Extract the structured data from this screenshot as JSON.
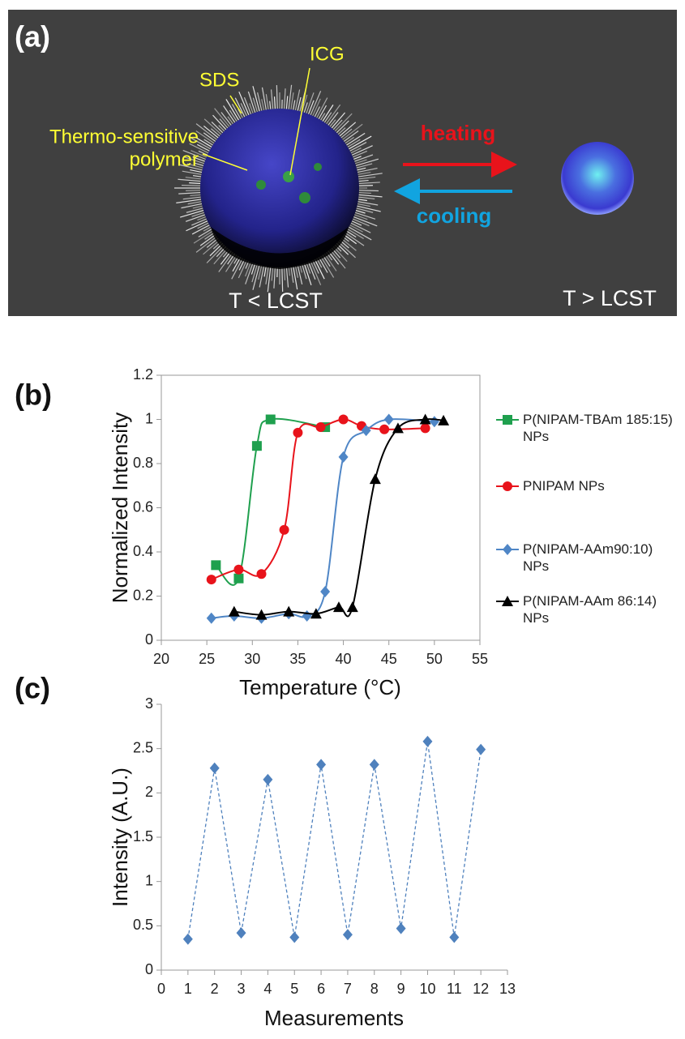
{
  "panel_a": {
    "label": "(a)",
    "sds": "SDS",
    "icg": "ICG",
    "polymer": [
      "Thermo-sensitive",
      "polymer"
    ],
    "heating": "heating",
    "cooling": "cooling",
    "below": "T < LCST",
    "above": "T > LCST"
  },
  "chart_data": [
    {
      "type": "line",
      "panel_label": "(b)",
      "smooth": true,
      "frame": true,
      "dashed": false,
      "y_label": "Normalized Intensity",
      "x_label": "Temperature (°C)",
      "xlim": [
        20,
        55
      ],
      "xticks": [
        20,
        25,
        30,
        35,
        40,
        45,
        50,
        55
      ],
      "ylim": [
        0,
        1.2
      ],
      "yticks": [
        0,
        0.2,
        0.4,
        0.6,
        0.8,
        1,
        1.2
      ],
      "legend": "right",
      "series": [
        {
          "name": "P(NIPAM-TBAm 185:15) NPs",
          "color": "#1fa04e",
          "marker": "square",
          "x": [
            26,
            28.5,
            30.5,
            32,
            38
          ],
          "values": [
            0.34,
            0.28,
            0.88,
            1.0,
            0.965
          ]
        },
        {
          "name": "PNIPAM NPs",
          "color": "#e8131b",
          "marker": "circle",
          "x": [
            25.5,
            28.5,
            31,
            33.5,
            35,
            37.5,
            40,
            42,
            44.5,
            49
          ],
          "values": [
            0.275,
            0.32,
            0.3,
            0.5,
            0.94,
            0.965,
            1.0,
            0.97,
            0.955,
            0.96
          ]
        },
        {
          "name": "P(NIPAM-AAm90:10) NPs",
          "color": "#4f86c6",
          "marker": "diamond",
          "x": [
            25.5,
            28,
            31,
            34,
            36,
            38,
            40,
            42.5,
            45,
            50
          ],
          "values": [
            0.1,
            0.11,
            0.1,
            0.12,
            0.11,
            0.22,
            0.83,
            0.95,
            1.0,
            0.99
          ]
        },
        {
          "name": "P(NIPAM-AAm 86:14) NPs",
          "color": "#000000",
          "marker": "triangle",
          "x": [
            28,
            31,
            34,
            37,
            39.5,
            41,
            43.5,
            46,
            49,
            51
          ],
          "values": [
            0.13,
            0.115,
            0.13,
            0.12,
            0.15,
            0.15,
            0.73,
            0.96,
            1.0,
            0.995
          ]
        }
      ]
    },
    {
      "type": "line",
      "panel_label": "(c)",
      "smooth": false,
      "frame": false,
      "dashed": true,
      "y_label": "Intensity (A.U.)",
      "x_label": "Measurements",
      "xlim": [
        0,
        13
      ],
      "xticks": [
        0,
        1,
        2,
        3,
        4,
        5,
        6,
        7,
        8,
        9,
        10,
        11,
        12,
        13
      ],
      "ylim": [
        0,
        3
      ],
      "yticks": [
        0,
        0.5,
        1,
        1.5,
        2,
        2.5,
        3
      ],
      "series": [
        {
          "color": "#4f81bd",
          "marker": "diamond",
          "x": [
            1,
            2,
            3,
            4,
            5,
            6,
            7,
            8,
            9,
            10,
            11,
            12
          ],
          "values": [
            0.35,
            2.28,
            0.42,
            2.15,
            0.37,
            2.32,
            0.4,
            2.32,
            0.47,
            2.58,
            0.37,
            2.49
          ]
        }
      ]
    }
  ]
}
